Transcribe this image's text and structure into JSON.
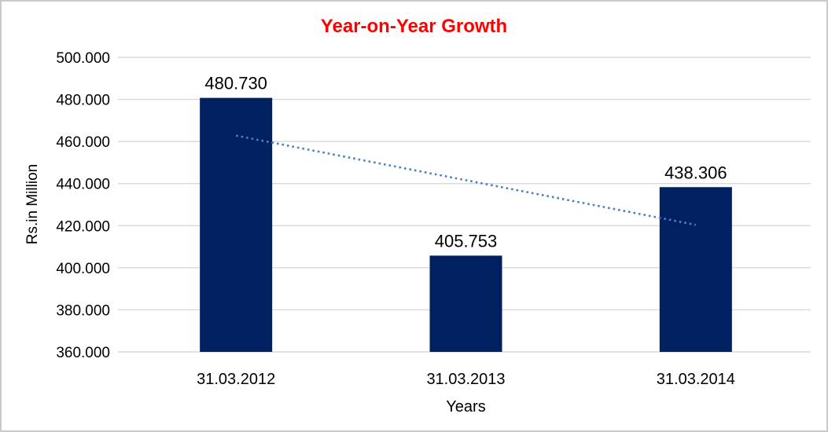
{
  "chart_data": {
    "type": "bar",
    "title": "Year-on-Year Growth",
    "xlabel": "Years",
    "ylabel": "Rs.in Million",
    "categories": [
      "31.03.2012",
      "31.03.2013",
      "31.03.2014"
    ],
    "values": [
      480.73,
      405.753,
      438.306
    ],
    "data_labels": [
      "480.730",
      "405.753",
      "438.306"
    ],
    "ytick_labels": [
      "360.000",
      "380.000",
      "400.000",
      "420.000",
      "440.000",
      "460.000",
      "480.000",
      "500.000"
    ],
    "ylim": [
      360,
      500
    ],
    "ytick_step": 20,
    "grid": true,
    "legend": "none",
    "bar_color": "#002060",
    "title_color": "#ff0000",
    "gridline_color": "#d9d9d9",
    "axis_text_color": "#000000",
    "trendline": {
      "type": "linear",
      "style": "dotted",
      "color": "#4a80c4"
    }
  }
}
